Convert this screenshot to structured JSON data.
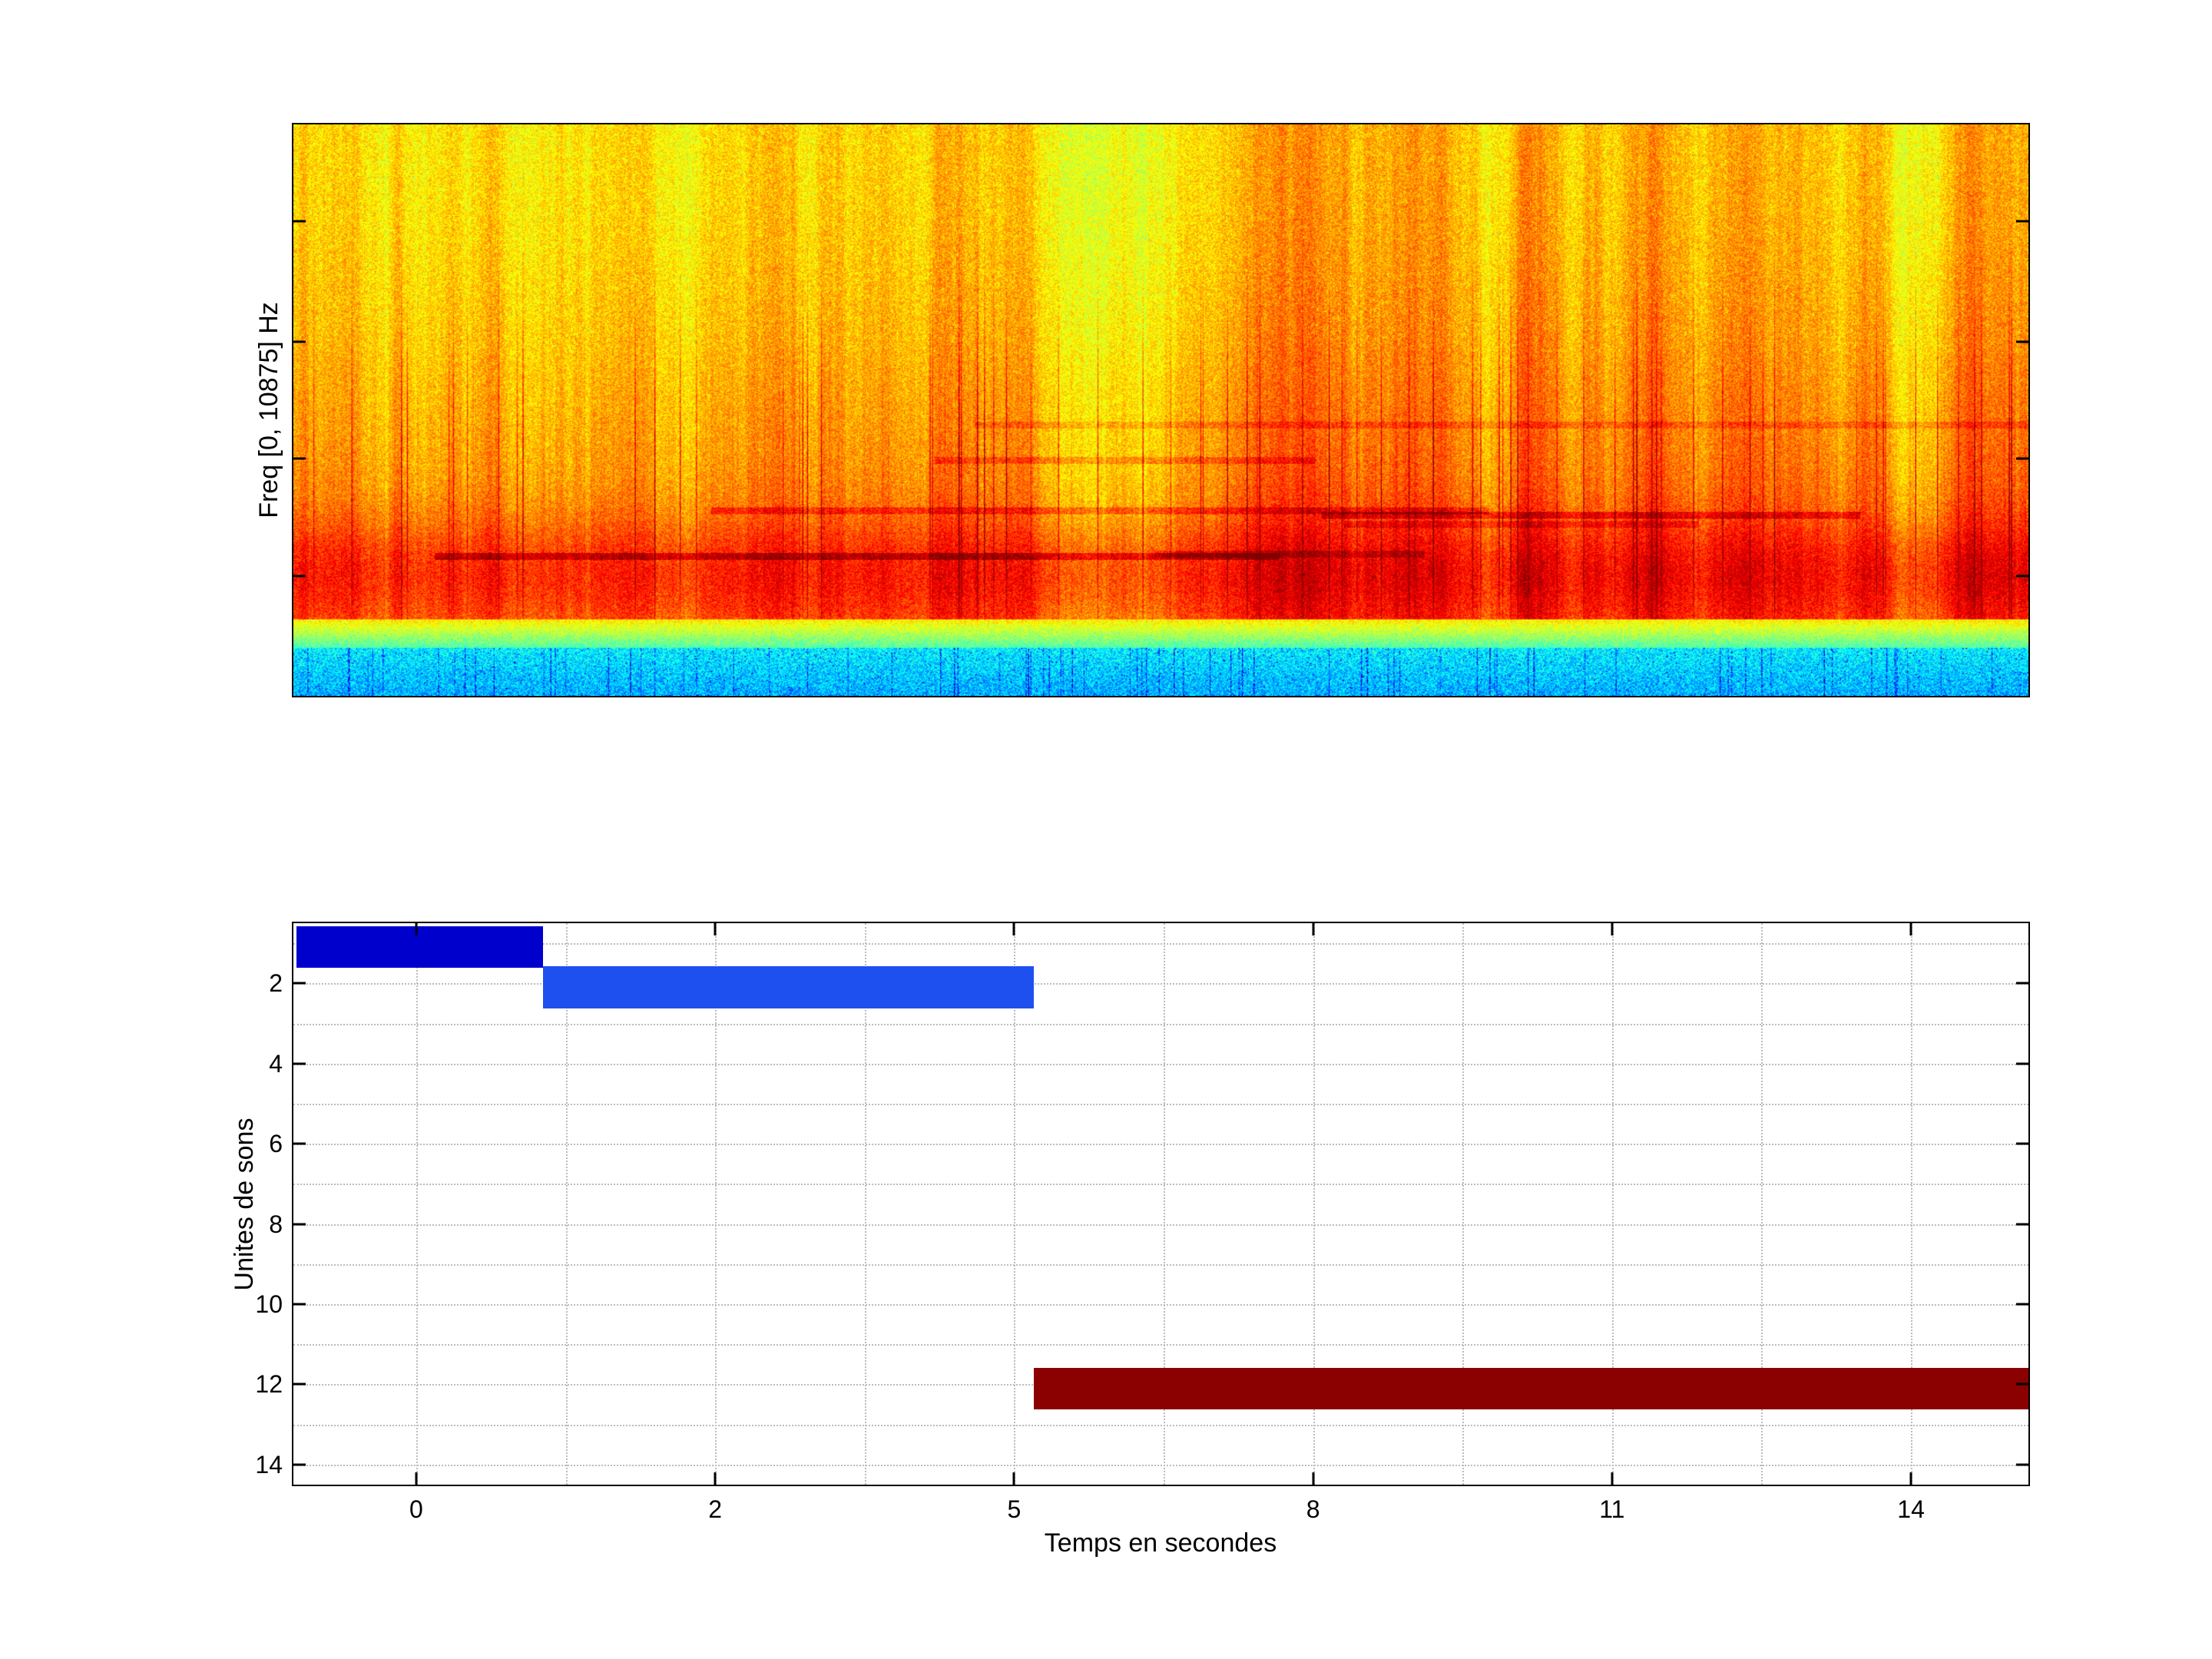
{
  "figure": {
    "background_color": "#ffffff"
  },
  "spectrogram": {
    "ylabel": "Freq [0, 10875] Hz"
  },
  "gantt": {
    "ylabel": "Unites de sons",
    "xlabel": "Temps en secondes"
  },
  "chart_data": [
    {
      "type": "heatmap",
      "kind": "spectrogram",
      "title": "",
      "ylabel": "Freq [0, 10875] Hz",
      "freq_range_hz": [
        0,
        10875
      ],
      "colormap": "jet",
      "appearance": "Dense orange/yellow speckled noise over most of the band, stronger red energy and dark-red patches concentrated in the lower quarter, a thin yellow-green transition band below it, and a cyan/green band with sparse blue vertical streaks at the lowest frequencies",
      "x_tick_labels": [],
      "y_tick_labels": []
    },
    {
      "type": "bar",
      "kind": "gantt",
      "title": "",
      "xlabel": "Temps en secondes",
      "ylabel": "Unites de sons",
      "x_axis": {
        "tick_labels": [
          0,
          2,
          5,
          8,
          11,
          14
        ],
        "first_tick_frac": 0.0708,
        "tick_step_frac": 0.1723
      },
      "y_axis": {
        "tick_labels": [
          2,
          4,
          6,
          8,
          10,
          12,
          14
        ],
        "lim": [
          0.5,
          14.5
        ],
        "inverted": true
      },
      "grid": "dotted",
      "segments": [
        {
          "unit": 1,
          "t_start": -0.8,
          "t_end": 0.85,
          "color": "#0000cc"
        },
        {
          "unit": 2,
          "t_start": 0.85,
          "t_end": 5.2,
          "color": "#1e50f0"
        },
        {
          "unit": 12,
          "t_start": 5.2,
          "t_end": 15.2,
          "color": "#8b0000"
        }
      ]
    }
  ]
}
